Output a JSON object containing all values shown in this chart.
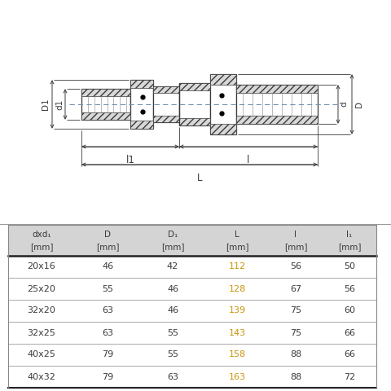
{
  "table_data": [
    [
      "20x16",
      "46",
      "42",
      "112",
      "56",
      "50"
    ],
    [
      "25x20",
      "55",
      "46",
      "128",
      "67",
      "56"
    ],
    [
      "32x20",
      "63",
      "46",
      "139",
      "75",
      "60"
    ],
    [
      "32x25",
      "63",
      "55",
      "143",
      "75",
      "66"
    ],
    [
      "40x25",
      "79",
      "55",
      "158",
      "88",
      "66"
    ],
    [
      "40x32",
      "79",
      "63",
      "163",
      "88",
      "72"
    ]
  ],
  "header_line1": [
    "dxd₁",
    "D",
    "D₁",
    "L",
    "l",
    "l₁"
  ],
  "header_line2": [
    "[mm]",
    "[mm]",
    "[mm]",
    "[mm]",
    "[mm]",
    "[mm]"
  ],
  "L_col_index": 3,
  "L_color": "#c8960c",
  "normal_color": "#3a3a3a",
  "header_bg": "#d4d4d4",
  "line_color": "#3a3a3a",
  "hatch_color": "#888888",
  "bg_color": "#ffffff",
  "dashed_color": "#7090b0",
  "fig_width": 4.8,
  "fig_height": 4.8,
  "dpi": 100
}
